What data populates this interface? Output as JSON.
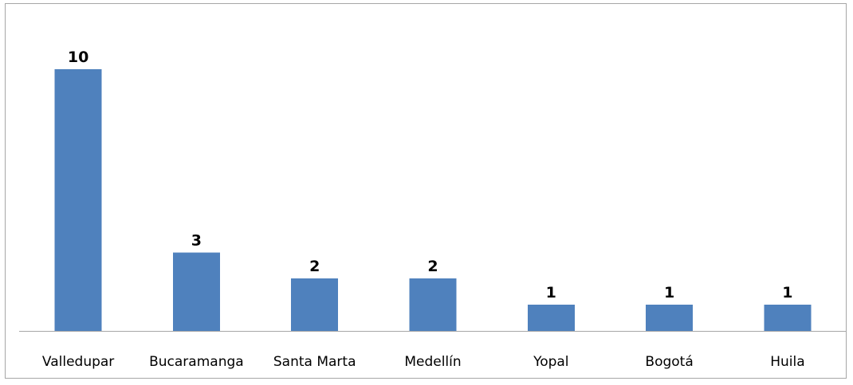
{
  "chart_data": {
    "type": "bar",
    "categories": [
      "Valledupar",
      "Bucaramanga",
      "Santa Marta",
      "Medellín",
      "Yopal",
      "Bogotá",
      "Huila"
    ],
    "values": [
      10,
      3,
      2,
      2,
      1,
      1,
      1
    ],
    "data_labels": [
      "10",
      "3",
      "2",
      "2",
      "1",
      "1",
      "1"
    ],
    "title": "",
    "xlabel": "",
    "ylabel": "",
    "ylim": [
      0,
      10
    ],
    "grid": false,
    "legend": "none",
    "bar_color": "#4f81bd",
    "axis_color": "#a6a6a6"
  }
}
